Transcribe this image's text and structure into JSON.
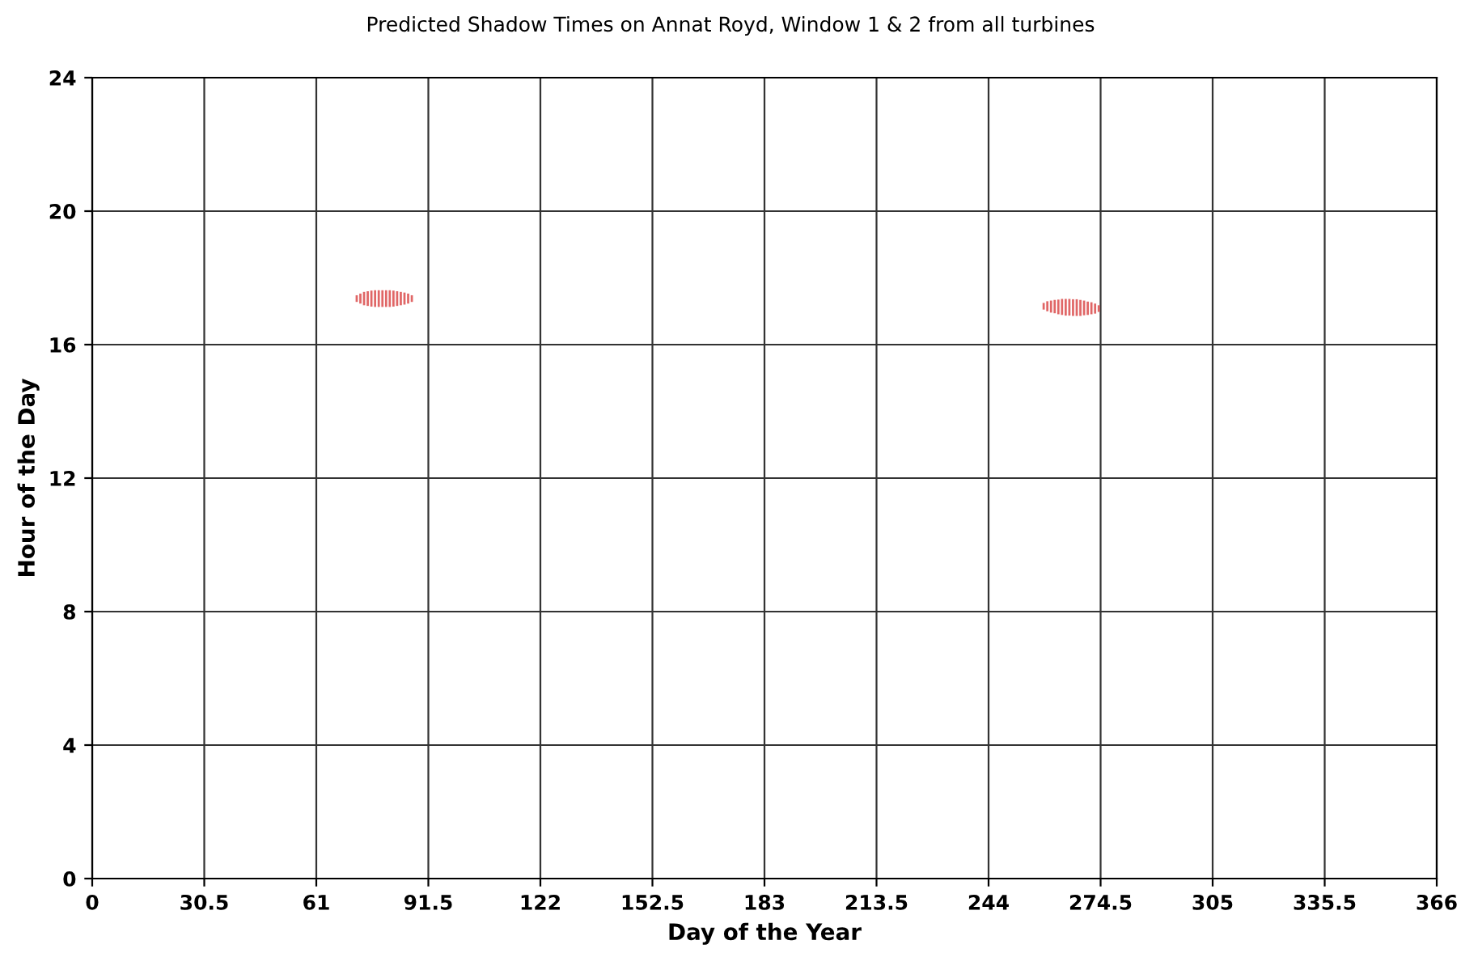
{
  "chart_data": {
    "type": "bar",
    "title": "Predicted Shadow Times on Annat Royd, Window 1 & 2 from all turbines",
    "xlabel": "Day of the Year",
    "ylabel": "Hour of the Day",
    "xlim": [
      0,
      366
    ],
    "xticks": [
      0,
      30.5,
      61,
      91.5,
      122,
      152.5,
      183,
      213.5,
      244,
      274.5,
      305,
      335.5,
      366
    ],
    "ylim": [
      0,
      24
    ],
    "yticks": [
      0,
      4,
      8,
      12,
      16,
      20,
      24
    ],
    "grid": true,
    "series": [
      {
        "color": "#e06666",
        "x": [
          72,
          73,
          74,
          75,
          76,
          77,
          78,
          79,
          80,
          81,
          82,
          83,
          84,
          85,
          86,
          87
        ],
        "base": [
          17.28,
          17.23,
          17.18,
          17.16,
          17.14,
          17.13,
          17.13,
          17.13,
          17.13,
          17.13,
          17.14,
          17.16,
          17.18,
          17.2,
          17.23,
          17.28
        ],
        "values": [
          0.2,
          0.3,
          0.4,
          0.44,
          0.48,
          0.5,
          0.5,
          0.5,
          0.5,
          0.5,
          0.48,
          0.44,
          0.4,
          0.36,
          0.3,
          0.2
        ]
      },
      {
        "color": "#e06666",
        "x": [
          259,
          260,
          261,
          262,
          263,
          264,
          265,
          266,
          267,
          268,
          269,
          270,
          271,
          272,
          273,
          274
        ],
        "base": [
          17.05,
          17.0,
          16.96,
          16.94,
          16.91,
          16.89,
          16.87,
          16.87,
          16.86,
          16.86,
          16.86,
          16.88,
          16.89,
          16.91,
          16.93,
          16.98
        ],
        "values": [
          0.2,
          0.3,
          0.36,
          0.4,
          0.44,
          0.48,
          0.5,
          0.5,
          0.5,
          0.5,
          0.48,
          0.44,
          0.4,
          0.36,
          0.3,
          0.2
        ]
      }
    ]
  }
}
